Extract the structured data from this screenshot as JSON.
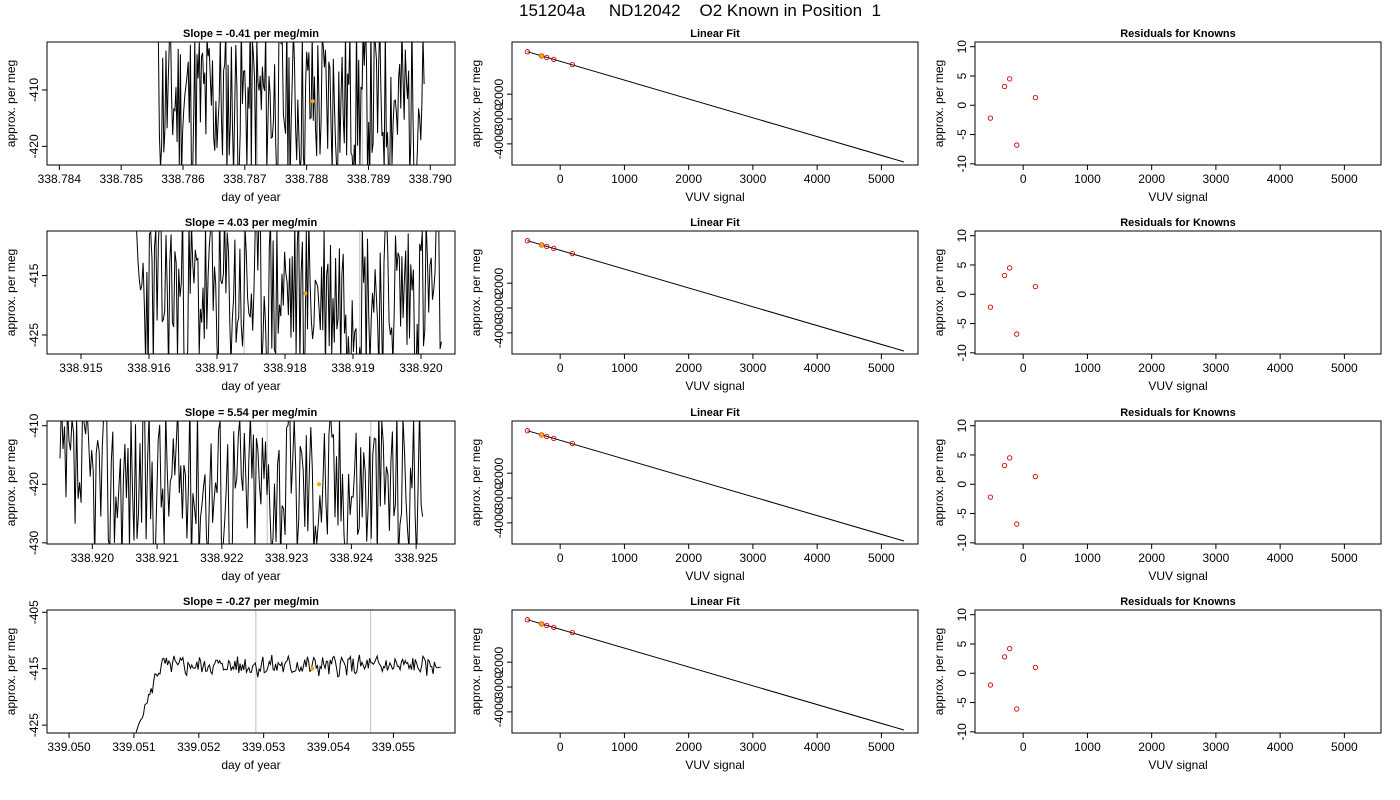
{
  "page": {
    "title": "151204a     ND12042    O2 Known in Position  1"
  },
  "chart_data": [
    {
      "type": "line",
      "title": "Slope =  -0.41  per meg/min",
      "xlabel": "day of year",
      "ylabel": "approx. per meg",
      "xlim": [
        338.7838,
        338.7904
      ],
      "ylim": [
        -423.3,
        -401.5
      ],
      "xticks": [
        "338.784",
        "338.785",
        "338.786",
        "338.787",
        "338.788",
        "338.789",
        "338.790"
      ],
      "xtick_values": [
        338.784,
        338.785,
        338.786,
        338.787,
        338.788,
        338.789,
        338.79
      ],
      "yticks": [
        "-410",
        "-420"
      ],
      "ytick_values": [
        -410,
        -420
      ],
      "vlines": [
        338.7872,
        338.7889
      ],
      "line_color": "#000000",
      "vline_color": "#bebebe",
      "marker": {
        "x": 338.7881,
        "y": -412,
        "color": "#ffa500"
      },
      "trace": {
        "x_start": 338.7856,
        "x_end": 338.7899,
        "y_center": -412,
        "y_amp": 11,
        "noise": "high",
        "seed": 11
      }
    },
    {
      "type": "line",
      "title": "Linear Fit",
      "xlabel": "VUV signal",
      "ylabel": "approx. per meg",
      "xlim": [
        -750,
        5570
      ],
      "ylim": [
        -4850,
        100
      ],
      "xticks": [
        "0",
        "1000",
        "2000",
        "3000",
        "4000",
        "5000"
      ],
      "xtick_values": [
        0,
        1000,
        2000,
        3000,
        4000,
        5000
      ],
      "yticks": [
        "-2000",
        "-3000",
        "-4000"
      ],
      "ytick_values": [
        -2000,
        -3000,
        -4000
      ],
      "fit_line": {
        "x": [
          -510,
          5350
        ],
        "y": [
          -290,
          -4730
        ]
      },
      "points": {
        "x": [
          -510,
          -290,
          -210,
          -100,
          190
        ],
        "y": [
          -290,
          -460,
          -520,
          -600,
          -810
        ]
      },
      "highlight": {
        "x": -290,
        "y": -460,
        "color": "#ffa500"
      },
      "point_color": "#cc0000"
    },
    {
      "type": "scatter",
      "title": "Residuals for Knowns",
      "xlabel": "VUV signal",
      "ylabel": "approx. per meg",
      "xlim": [
        -750,
        5570
      ],
      "ylim": [
        -10.2,
        10.8
      ],
      "xticks": [
        "0",
        "1000",
        "2000",
        "3000",
        "4000",
        "5000"
      ],
      "xtick_values": [
        0,
        1000,
        2000,
        3000,
        4000,
        5000
      ],
      "yticks": [
        "10",
        "5",
        "0",
        "-5",
        "-10"
      ],
      "ytick_values": [
        10,
        5,
        0,
        -5,
        -10
      ],
      "x": [
        -510,
        -290,
        -210,
        -100,
        190
      ],
      "y": [
        -2.2,
        3.2,
        4.5,
        -6.8,
        1.3
      ],
      "point_color": "#cc0000"
    },
    {
      "type": "line",
      "title": "Slope =  4.03  per meg/min",
      "xlabel": "day of year",
      "ylabel": "approx. per meg",
      "xlim": [
        338.9145,
        338.9205
      ],
      "ylim": [
        -428.2,
        -407.5
      ],
      "xticks": [
        "338.915",
        "338.916",
        "338.917",
        "338.918",
        "338.919",
        "338.920"
      ],
      "xtick_values": [
        338.915,
        338.916,
        338.917,
        338.918,
        338.919,
        338.92
      ],
      "yticks": [
        "-415",
        "-425"
      ],
      "ytick_values": [
        -415,
        -425
      ],
      "vlines": [
        338.9174,
        338.9191
      ],
      "line_color": "#000000",
      "vline_color": "#bebebe",
      "marker": {
        "x": 338.9183,
        "y": -418,
        "color": "#ffa500"
      },
      "trace": {
        "x_start": 338.9158,
        "x_end": 338.9203,
        "y_center": -418,
        "y_amp": 11,
        "noise": "high",
        "seed": 23
      }
    },
    {
      "type": "line",
      "title": "Linear Fit",
      "xlabel": "VUV signal",
      "ylabel": "approx. per meg",
      "xlim": [
        -750,
        5570
      ],
      "ylim": [
        -4850,
        100
      ],
      "xticks": [
        "0",
        "1000",
        "2000",
        "3000",
        "4000",
        "5000"
      ],
      "xtick_values": [
        0,
        1000,
        2000,
        3000,
        4000,
        5000
      ],
      "yticks": [
        "-2000",
        "-3000",
        "-4000"
      ],
      "ytick_values": [
        -2000,
        -3000,
        -4000
      ],
      "fit_line": {
        "x": [
          -510,
          5350
        ],
        "y": [
          -290,
          -4730
        ]
      },
      "points": {
        "x": [
          -510,
          -290,
          -210,
          -100,
          190
        ],
        "y": [
          -290,
          -460,
          -520,
          -600,
          -810
        ]
      },
      "highlight": {
        "x": -290,
        "y": -460,
        "color": "#ffa500"
      },
      "point_color": "#cc0000"
    },
    {
      "type": "scatter",
      "title": "Residuals for Knowns",
      "xlabel": "VUV signal",
      "ylabel": "approx. per meg",
      "xlim": [
        -750,
        5570
      ],
      "ylim": [
        -10.2,
        10.8
      ],
      "xticks": [
        "0",
        "1000",
        "2000",
        "3000",
        "4000",
        "5000"
      ],
      "xtick_values": [
        0,
        1000,
        2000,
        3000,
        4000,
        5000
      ],
      "yticks": [
        "10",
        "5",
        "0",
        "-5",
        "-10"
      ],
      "ytick_values": [
        10,
        5,
        0,
        -5,
        -10
      ],
      "x": [
        -510,
        -290,
        -210,
        -100,
        190
      ],
      "y": [
        -2.2,
        3.2,
        4.5,
        -6.8,
        1.3
      ],
      "point_color": "#cc0000"
    },
    {
      "type": "line",
      "title": "Slope =  5.54  per meg/min",
      "xlabel": "day of year",
      "ylabel": "approx. per meg",
      "xlim": [
        338.9193,
        338.9256
      ],
      "ylim": [
        -430.2,
        -409.2
      ],
      "xticks": [
        "338.920",
        "338.921",
        "338.922",
        "338.923",
        "338.924",
        "338.925"
      ],
      "xtick_values": [
        338.92,
        338.921,
        338.922,
        338.923,
        338.924,
        338.925
      ],
      "yticks": [
        "-410",
        "-420",
        "-430"
      ],
      "ytick_values": [
        -410,
        -420,
        -430
      ],
      "vlines": [
        338.9227,
        338.9243
      ],
      "line_color": "#000000",
      "vline_color": "#bebebe",
      "marker": {
        "x": 338.9235,
        "y": -420,
        "color": "#ffa500"
      },
      "trace": {
        "x_start": 338.9195,
        "x_end": 338.9251,
        "y_center": -419.5,
        "y_amp": 10.5,
        "noise": "high",
        "seed": 37
      }
    },
    {
      "type": "line",
      "title": "Linear Fit",
      "xlabel": "VUV signal",
      "ylabel": "approx. per meg",
      "xlim": [
        -750,
        5570
      ],
      "ylim": [
        -4850,
        100
      ],
      "xticks": [
        "0",
        "1000",
        "2000",
        "3000",
        "4000",
        "5000"
      ],
      "xtick_values": [
        0,
        1000,
        2000,
        3000,
        4000,
        5000
      ],
      "yticks": [
        "-2000",
        "-3000",
        "-4000"
      ],
      "ytick_values": [
        -2000,
        -3000,
        -4000
      ],
      "fit_line": {
        "x": [
          -510,
          5350
        ],
        "y": [
          -290,
          -4730
        ]
      },
      "points": {
        "x": [
          -510,
          -290,
          -210,
          -100,
          190
        ],
        "y": [
          -290,
          -460,
          -520,
          -600,
          -810
        ]
      },
      "highlight": {
        "x": -290,
        "y": -460,
        "color": "#ffa500"
      },
      "point_color": "#cc0000"
    },
    {
      "type": "scatter",
      "title": "Residuals for Knowns",
      "xlabel": "VUV signal",
      "ylabel": "approx. per meg",
      "xlim": [
        -750,
        5570
      ],
      "ylim": [
        -10.2,
        10.8
      ],
      "xticks": [
        "0",
        "1000",
        "2000",
        "3000",
        "4000",
        "5000"
      ],
      "xtick_values": [
        0,
        1000,
        2000,
        3000,
        4000,
        5000
      ],
      "yticks": [
        "10",
        "5",
        "0",
        "-5",
        "-10"
      ],
      "ytick_values": [
        10,
        5,
        0,
        -5,
        -10
      ],
      "x": [
        -510,
        -290,
        -210,
        -100,
        190
      ],
      "y": [
        -2.2,
        3.2,
        4.5,
        -6.8,
        1.3
      ],
      "point_color": "#cc0000"
    },
    {
      "type": "line",
      "title": "Slope =  -0.27  per meg/min",
      "xlabel": "day of year",
      "ylabel": "approx. per meg",
      "xlim": [
        339.04966,
        339.05595
      ],
      "ylim": [
        -426.4,
        -404.6
      ],
      "xticks": [
        "339.050",
        "339.051",
        "339.052",
        "339.053",
        "339.054",
        "339.055"
      ],
      "xtick_values": [
        339.05,
        339.051,
        339.052,
        339.053,
        339.054,
        339.055
      ],
      "yticks": [
        "-405",
        "-415",
        "-425"
      ],
      "ytick_values": [
        -405,
        -415,
        -425
      ],
      "vlines": [
        339.05288,
        339.05465
      ],
      "line_color": "#000000",
      "vline_color": "#bebebe",
      "marker": {
        "x": 339.05375,
        "y": -415,
        "color": "#ffa500"
      },
      "trace": {
        "x_start": 339.05103,
        "x_end": 339.05573,
        "y_center": -414.5,
        "y_amp": 1.1,
        "noise": "low",
        "rise_from": -426.4,
        "rise_to_x": 339.0514,
        "seed": 5
      }
    },
    {
      "type": "line",
      "title": "Linear Fit",
      "xlabel": "VUV signal",
      "ylabel": "approx. per meg",
      "xlim": [
        -750,
        5570
      ],
      "ylim": [
        -4850,
        100
      ],
      "xticks": [
        "0",
        "1000",
        "2000",
        "3000",
        "4000",
        "5000"
      ],
      "xtick_values": [
        0,
        1000,
        2000,
        3000,
        4000,
        5000
      ],
      "yticks": [
        "-2000",
        "-3000",
        "-4000"
      ],
      "ytick_values": [
        -2000,
        -3000,
        -4000
      ],
      "fit_line": {
        "x": [
          -510,
          5350
        ],
        "y": [
          -290,
          -4730
        ]
      },
      "points": {
        "x": [
          -510,
          -290,
          -210,
          -100,
          190
        ],
        "y": [
          -290,
          -460,
          -520,
          -600,
          -810
        ]
      },
      "highlight": {
        "x": -290,
        "y": -460,
        "color": "#ffa500"
      },
      "point_color": "#cc0000"
    },
    {
      "type": "scatter",
      "title": "Residuals for Knowns",
      "xlabel": "VUV signal",
      "ylabel": "approx. per meg",
      "xlim": [
        -750,
        5570
      ],
      "ylim": [
        -10.2,
        10.8
      ],
      "xticks": [
        "0",
        "1000",
        "2000",
        "3000",
        "4000",
        "5000"
      ],
      "xtick_values": [
        0,
        1000,
        2000,
        3000,
        4000,
        5000
      ],
      "yticks": [
        "10",
        "5",
        "0",
        "-5",
        "-10"
      ],
      "ytick_values": [
        10,
        5,
        0,
        -5,
        -10
      ],
      "x": [
        -510,
        -290,
        -210,
        -100,
        190
      ],
      "y": [
        -2.0,
        2.8,
        4.2,
        -6.1,
        1.0
      ],
      "point_color": "#cc0000"
    }
  ]
}
